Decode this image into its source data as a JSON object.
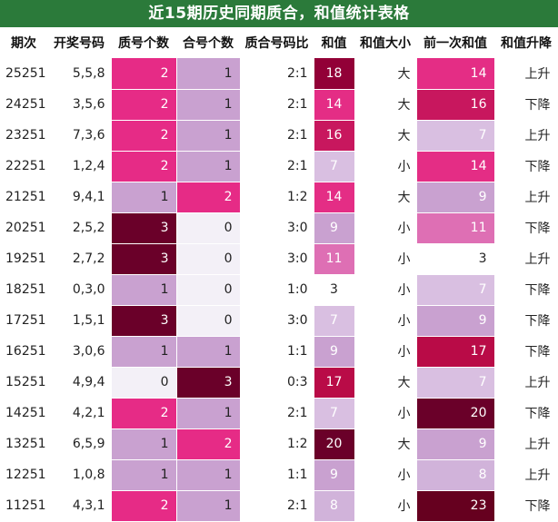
{
  "title": "近15期历史同期质合，和值统计表格",
  "headers": [
    "期次",
    "开奖号码",
    "质号个数",
    "合号个数",
    "质合号码比",
    "和值",
    "和值大小",
    "前一次和值",
    "和值升降"
  ],
  "colors": {
    "title_bg": "#2b7a3a",
    "count_0": "#f3f0f7",
    "count_1": "#c9a1d0",
    "count_2": "#e62b86",
    "count_3": "#6a0029",
    "sum_3": "#ffffff",
    "sum_7": "#d9bfe1",
    "sum_8": "#d1b3da",
    "sum_9": "#c9a1d0",
    "sum_11": "#de6fb4",
    "sum_14": "#e42d85",
    "sum_16": "#c8175e",
    "sum_17": "#b90b47",
    "sum_18": "#920037",
    "sum_20": "#6a0029",
    "sum_23": "#66001f"
  },
  "rows": [
    {
      "period": "25251",
      "numbers": "5,5,8",
      "prime": "2",
      "composite": "1",
      "ratio": "2:1",
      "sum": "18",
      "size": "大",
      "prev_sum": "14",
      "trend": "上升"
    },
    {
      "period": "24251",
      "numbers": "3,5,6",
      "prime": "2",
      "composite": "1",
      "ratio": "2:1",
      "sum": "14",
      "size": "大",
      "prev_sum": "16",
      "trend": "下降"
    },
    {
      "period": "23251",
      "numbers": "7,3,6",
      "prime": "2",
      "composite": "1",
      "ratio": "2:1",
      "sum": "16",
      "size": "大",
      "prev_sum": "7",
      "trend": "上升"
    },
    {
      "period": "22251",
      "numbers": "1,2,4",
      "prime": "2",
      "composite": "1",
      "ratio": "2:1",
      "sum": "7",
      "size": "小",
      "prev_sum": "14",
      "trend": "下降"
    },
    {
      "period": "21251",
      "numbers": "9,4,1",
      "prime": "1",
      "composite": "2",
      "ratio": "1:2",
      "sum": "14",
      "size": "大",
      "prev_sum": "9",
      "trend": "上升"
    },
    {
      "period": "20251",
      "numbers": "2,5,2",
      "prime": "3",
      "composite": "0",
      "ratio": "3:0",
      "sum": "9",
      "size": "小",
      "prev_sum": "11",
      "trend": "下降"
    },
    {
      "period": "19251",
      "numbers": "2,7,2",
      "prime": "3",
      "composite": "0",
      "ratio": "3:0",
      "sum": "11",
      "size": "小",
      "prev_sum": "3",
      "trend": "上升"
    },
    {
      "period": "18251",
      "numbers": "0,3,0",
      "prime": "1",
      "composite": "0",
      "ratio": "1:0",
      "sum": "3",
      "size": "小",
      "prev_sum": "7",
      "trend": "下降"
    },
    {
      "period": "17251",
      "numbers": "1,5,1",
      "prime": "3",
      "composite": "0",
      "ratio": "3:0",
      "sum": "7",
      "size": "小",
      "prev_sum": "9",
      "trend": "下降"
    },
    {
      "period": "16251",
      "numbers": "3,0,6",
      "prime": "1",
      "composite": "1",
      "ratio": "1:1",
      "sum": "9",
      "size": "小",
      "prev_sum": "17",
      "trend": "下降"
    },
    {
      "period": "15251",
      "numbers": "4,9,4",
      "prime": "0",
      "composite": "3",
      "ratio": "0:3",
      "sum": "17",
      "size": "大",
      "prev_sum": "7",
      "trend": "上升"
    },
    {
      "period": "14251",
      "numbers": "4,2,1",
      "prime": "2",
      "composite": "1",
      "ratio": "2:1",
      "sum": "7",
      "size": "小",
      "prev_sum": "20",
      "trend": "下降"
    },
    {
      "period": "13251",
      "numbers": "6,5,9",
      "prime": "1",
      "composite": "2",
      "ratio": "1:2",
      "sum": "20",
      "size": "大",
      "prev_sum": "9",
      "trend": "上升"
    },
    {
      "period": "12251",
      "numbers": "1,0,8",
      "prime": "1",
      "composite": "1",
      "ratio": "1:1",
      "sum": "9",
      "size": "小",
      "prev_sum": "8",
      "trend": "上升"
    },
    {
      "period": "11251",
      "numbers": "4,3,1",
      "prime": "2",
      "composite": "1",
      "ratio": "2:1",
      "sum": "8",
      "size": "小",
      "prev_sum": "23",
      "trend": "下降"
    }
  ]
}
